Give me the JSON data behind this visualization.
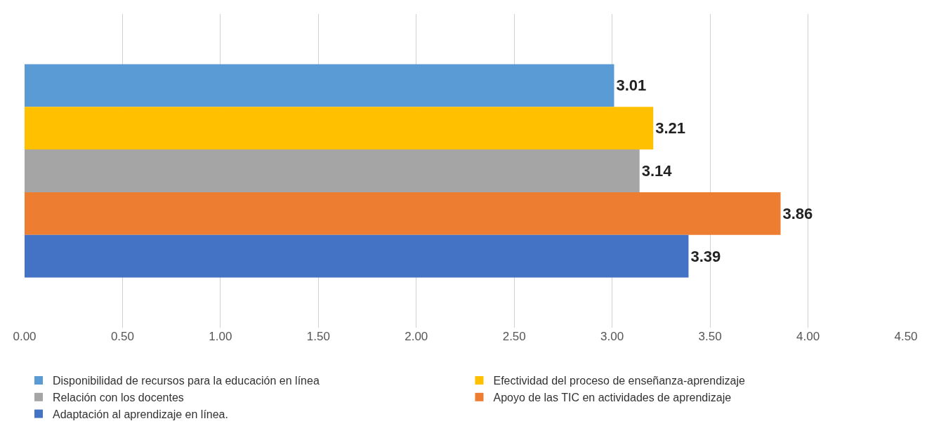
{
  "chart_data": {
    "type": "bar",
    "orientation": "horizontal",
    "categories": [
      null
    ],
    "series": [
      {
        "name": "Disponibilidad de recursos para la educación en línea",
        "color": "#5b9bd5",
        "values": [
          3.01
        ]
      },
      {
        "name": "Efectividad del proceso de enseñanza-aprendizaje",
        "color": "#ffc000",
        "values": [
          3.21
        ]
      },
      {
        "name": "Relación con los docentes",
        "color": "#a5a5a5",
        "values": [
          3.14
        ]
      },
      {
        "name": "Apoyo de las TIC en actividades de aprendizaje",
        "color": "#ed7d31",
        "values": [
          3.86
        ]
      },
      {
        "name": "Adaptación al aprendizaje en línea.",
        "color": "#4472c4",
        "values": [
          3.39
        ]
      }
    ],
    "xlim": [
      0,
      4.5
    ],
    "xticks": [
      {
        "value": 0,
        "label": "0.00"
      },
      {
        "value": 0.5,
        "label": "0.50"
      },
      {
        "value": 1,
        "label": "1.00"
      },
      {
        "value": 1.5,
        "label": "1.50"
      },
      {
        "value": 2,
        "label": "2.00"
      },
      {
        "value": 2.5,
        "label": "2.50"
      },
      {
        "value": 3,
        "label": "3.00"
      },
      {
        "value": 3.5,
        "label": "3.50"
      },
      {
        "value": 4,
        "label": "4.00"
      },
      {
        "value": 4.5,
        "label": "4.50"
      }
    ],
    "grid": "x",
    "legend": "bottom",
    "data_labels": true
  }
}
